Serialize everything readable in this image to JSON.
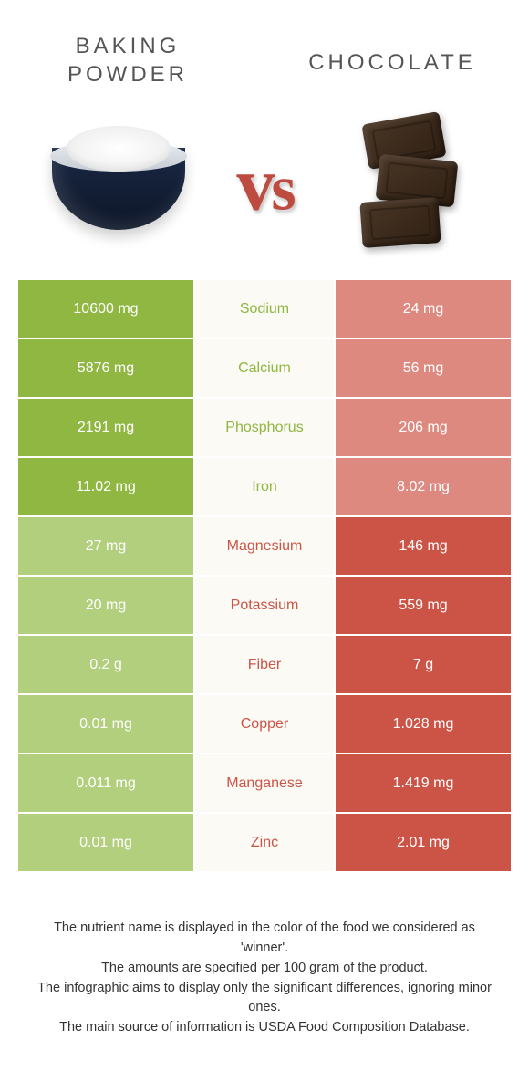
{
  "header": {
    "left_title_line1": "BAKING",
    "left_title_line2": "POWDER",
    "right_title": "CHOCOLATE",
    "vs_text": "vs"
  },
  "colors": {
    "left_winner": "#8fb741",
    "right_winner": "#cc5447",
    "left_loser": "#b2cf7e",
    "right_loser": "#dd897f",
    "mid_bg": "#fbfaf5",
    "label_left_color": "#8fb741",
    "label_right_color": "#cc5447",
    "title_color": "#555555",
    "vs_color": "#bd4b3f",
    "footer_color": "#333333"
  },
  "rows": [
    {
      "label": "Sodium",
      "left": "10600 mg",
      "right": "24 mg",
      "winner": "left"
    },
    {
      "label": "Calcium",
      "left": "5876 mg",
      "right": "56 mg",
      "winner": "left"
    },
    {
      "label": "Phosphorus",
      "left": "2191 mg",
      "right": "206 mg",
      "winner": "left"
    },
    {
      "label": "Iron",
      "left": "11.02 mg",
      "right": "8.02 mg",
      "winner": "left"
    },
    {
      "label": "Magnesium",
      "left": "27 mg",
      "right": "146 mg",
      "winner": "right"
    },
    {
      "label": "Potassium",
      "left": "20 mg",
      "right": "559 mg",
      "winner": "right"
    },
    {
      "label": "Fiber",
      "left": "0.2 g",
      "right": "7 g",
      "winner": "right"
    },
    {
      "label": "Copper",
      "left": "0.01 mg",
      "right": "1.028 mg",
      "winner": "right"
    },
    {
      "label": "Manganese",
      "left": "0.011 mg",
      "right": "1.419 mg",
      "winner": "right"
    },
    {
      "label": "Zinc",
      "left": "0.01 mg",
      "right": "2.01 mg",
      "winner": "right"
    }
  ],
  "footer": {
    "line1": "The nutrient name is displayed in the color of the food we considered as 'winner'.",
    "line2": "The amounts are specified per 100 gram of the product.",
    "line3": "The infographic aims to display only the significant differences, ignoring minor ones.",
    "line4": "The main source of information is USDA Food Composition Database."
  }
}
